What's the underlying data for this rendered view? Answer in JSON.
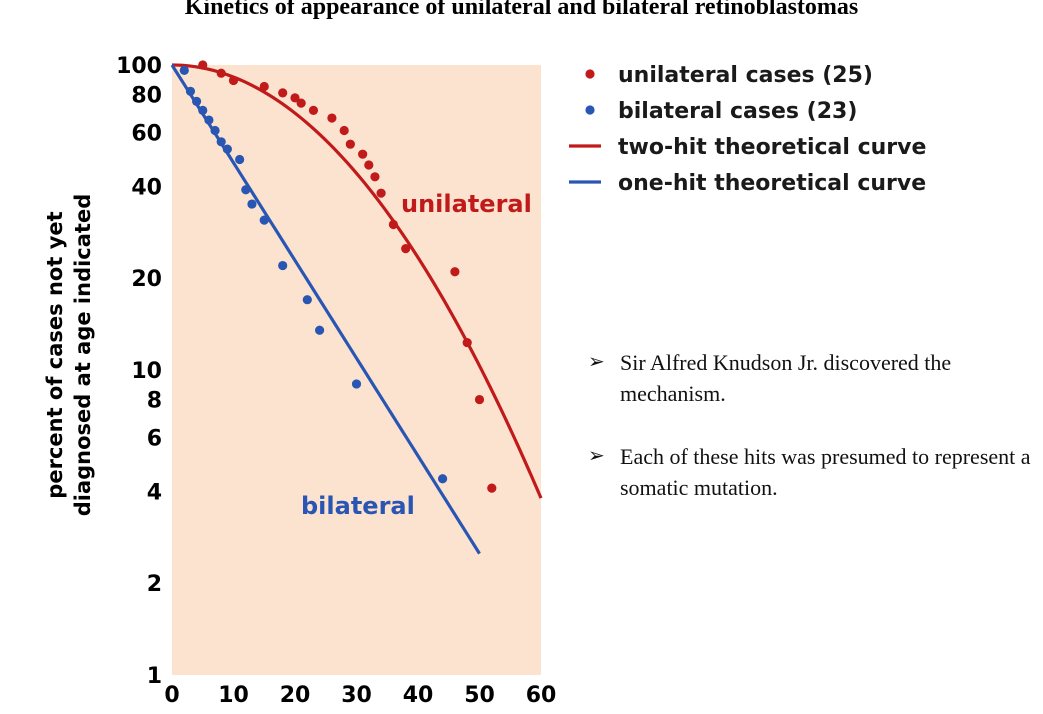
{
  "slide": {
    "title": "Kinetics of appearance of unilateral and bilateral retinoblastomas",
    "bullets": [
      "Sir Alfred Knudson Jr. discovered the mechanism.",
      "Each of these hits was presumed to represent a somatic mutation."
    ],
    "bullet_marker": "➢"
  },
  "chart_data": {
    "type": "scatter",
    "title": "",
    "xlabel": "",
    "ylabel": "percent of cases not yet diagnosed at age indicated",
    "ylabel_lines": [
      "percent of cases not yet",
      "diagnosed at age indicated"
    ],
    "xlim": [
      0,
      60
    ],
    "ylim": [
      1,
      100
    ],
    "yscale": "log",
    "x_ticks": [
      0,
      10,
      20,
      30,
      40,
      50,
      60
    ],
    "y_ticks": [
      1,
      2,
      4,
      6,
      8,
      10,
      20,
      40,
      60,
      80,
      100
    ],
    "plot_background": "#fbe3cf",
    "grid": false,
    "legend_position": "top-right, outside plot",
    "series": [
      {
        "name": "unilateral cases (25)",
        "kind": "points",
        "color": "#c01a1a",
        "points": [
          [
            5,
            100
          ],
          [
            8,
            94
          ],
          [
            10,
            89
          ],
          [
            15,
            85
          ],
          [
            18,
            81
          ],
          [
            20,
            78
          ],
          [
            21,
            75
          ],
          [
            23,
            71
          ],
          [
            26,
            67
          ],
          [
            28,
            61
          ],
          [
            29,
            55
          ],
          [
            31,
            51
          ],
          [
            32,
            47
          ],
          [
            33,
            43
          ],
          [
            34,
            38
          ],
          [
            36,
            30
          ],
          [
            38,
            25
          ],
          [
            46,
            21
          ],
          [
            48,
            12.3
          ],
          [
            50,
            8
          ],
          [
            52,
            4.1
          ]
        ]
      },
      {
        "name": "bilateral cases (23)",
        "kind": "points",
        "color": "#2a56b3",
        "points": [
          [
            2,
            96
          ],
          [
            3,
            82
          ],
          [
            4,
            76
          ],
          [
            5,
            71
          ],
          [
            6,
            66
          ],
          [
            7,
            61
          ],
          [
            8,
            56
          ],
          [
            9,
            53
          ],
          [
            11,
            49
          ],
          [
            12,
            39
          ],
          [
            13,
            35
          ],
          [
            15,
            31
          ],
          [
            18,
            22
          ],
          [
            22,
            17
          ],
          [
            24,
            13.5
          ],
          [
            30,
            9
          ],
          [
            44,
            4.4
          ]
        ]
      },
      {
        "name": "two-hit theoretical curve",
        "kind": "curve",
        "color": "#c01a1a",
        "model": "exp(-k*t^2)",
        "points": [
          [
            0,
            100
          ],
          [
            10,
            93
          ],
          [
            20,
            76
          ],
          [
            30,
            54
          ],
          [
            40,
            30
          ],
          [
            50,
            12.6
          ],
          [
            60,
            3.8
          ]
        ]
      },
      {
        "name": "one-hit theoretical curve",
        "kind": "curve",
        "color": "#2a56b3",
        "model": "exp(-k*t)",
        "points": [
          [
            0,
            100
          ],
          [
            10,
            51
          ],
          [
            20,
            26
          ],
          [
            30,
            13.4
          ],
          [
            40,
            6.8
          ],
          [
            50,
            2.5
          ]
        ]
      }
    ],
    "annotations": [
      {
        "text": "unilateral",
        "color": "#c01a1a",
        "x": 34,
        "y": 35
      },
      {
        "text": "bilateral",
        "color": "#2a56b3",
        "x": 24,
        "y": 3.6
      }
    ],
    "legend": [
      {
        "label": "unilateral cases (25)",
        "marker": "dot",
        "color": "#c01a1a"
      },
      {
        "label": "bilateral cases (23)",
        "marker": "dot",
        "color": "#2a56b3"
      },
      {
        "label": "two-hit theoretical curve",
        "marker": "line",
        "color": "#c01a1a"
      },
      {
        "label": "one-hit theoretical curve",
        "marker": "line",
        "color": "#2a56b3"
      }
    ]
  }
}
